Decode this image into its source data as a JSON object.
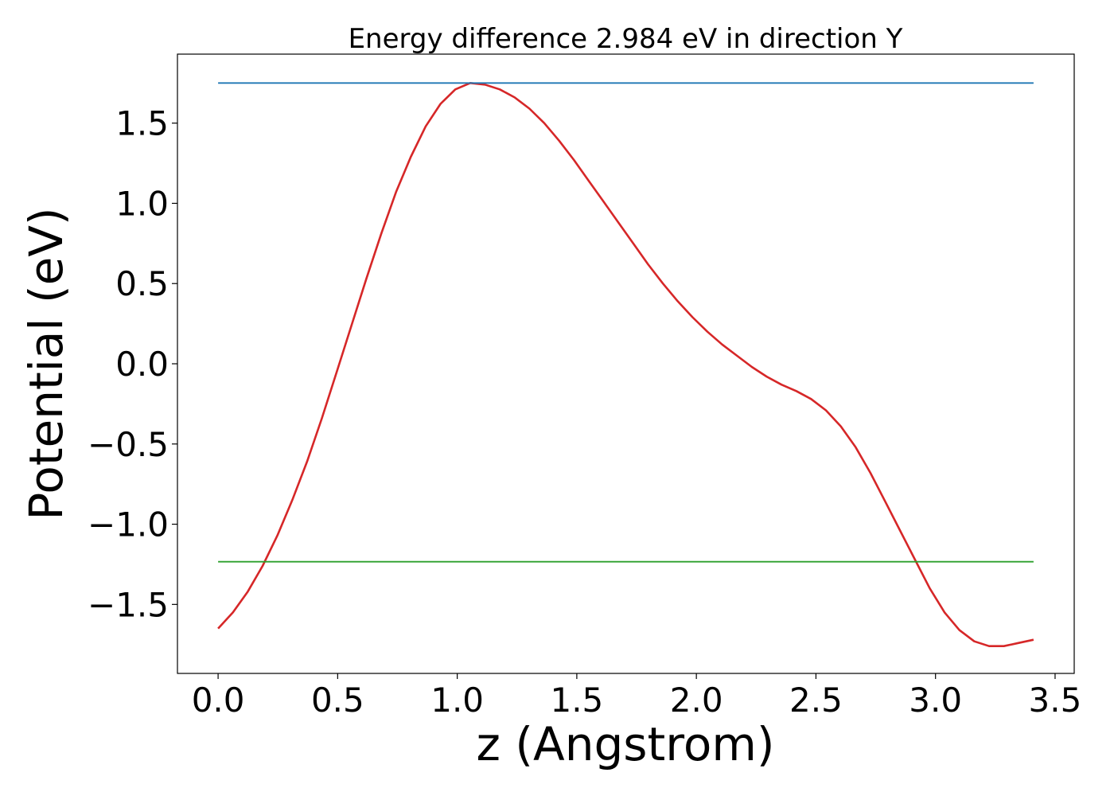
{
  "chart_data": {
    "type": "line",
    "title": "Energy difference 2.984 eV in direction Y",
    "xlabel": "z (Angstrom)",
    "ylabel": "Potential (eV)",
    "xlim": [
      -0.17,
      3.58
    ],
    "ylim": [
      -1.93,
      1.93
    ],
    "x_ticks": [
      0.0,
      0.5,
      1.0,
      1.5,
      2.0,
      2.5,
      3.0,
      3.5
    ],
    "x_tick_labels": [
      "0.0",
      "0.5",
      "1.0",
      "1.5",
      "2.0",
      "2.5",
      "3.0",
      "3.5"
    ],
    "y_ticks": [
      -1.5,
      -1.0,
      -0.5,
      0.0,
      0.5,
      1.0,
      1.5
    ],
    "y_tick_labels": [
      "−1.5",
      "−1.0",
      "−0.5",
      "0.0",
      "0.5",
      "1.0",
      "1.5"
    ],
    "grid": false,
    "legend": "none",
    "series": [
      {
        "color": "#d62728",
        "x": [
          0.0,
          0.062,
          0.124,
          0.186,
          0.248,
          0.31,
          0.372,
          0.434,
          0.496,
          0.558,
          0.62,
          0.682,
          0.744,
          0.806,
          0.868,
          0.93,
          0.992,
          1.054,
          1.116,
          1.178,
          1.24,
          1.302,
          1.364,
          1.426,
          1.488,
          1.55,
          1.612,
          1.674,
          1.736,
          1.798,
          1.86,
          1.922,
          1.984,
          2.046,
          2.108,
          2.17,
          2.232,
          2.294,
          2.356,
          2.418,
          2.48,
          2.542,
          2.604,
          2.666,
          2.728,
          2.79,
          2.852,
          2.914,
          2.976,
          3.038,
          3.1,
          3.162,
          3.224,
          3.286,
          3.348,
          3.41
        ],
        "y": [
          -1.65,
          -1.55,
          -1.42,
          -1.26,
          -1.07,
          -0.85,
          -0.61,
          -0.34,
          -0.05,
          0.24,
          0.53,
          0.81,
          1.07,
          1.29,
          1.48,
          1.62,
          1.71,
          1.75,
          1.74,
          1.71,
          1.66,
          1.59,
          1.5,
          1.39,
          1.27,
          1.14,
          1.01,
          0.88,
          0.75,
          0.62,
          0.5,
          0.39,
          0.29,
          0.2,
          0.12,
          0.05,
          -0.02,
          -0.08,
          -0.13,
          -0.17,
          -0.22,
          -0.29,
          -0.39,
          -0.52,
          -0.68,
          -0.86,
          -1.04,
          -1.22,
          -1.4,
          -1.55,
          -1.66,
          -1.73,
          -1.76,
          -1.76,
          -1.74,
          -1.72
        ]
      },
      {
        "color": "#1f77b4",
        "x": [
          0.0,
          3.41
        ],
        "y": [
          1.75,
          1.75
        ]
      },
      {
        "color": "#2ca02c",
        "x": [
          0.0,
          3.41
        ],
        "y": [
          -1.234,
          -1.234
        ]
      }
    ]
  }
}
